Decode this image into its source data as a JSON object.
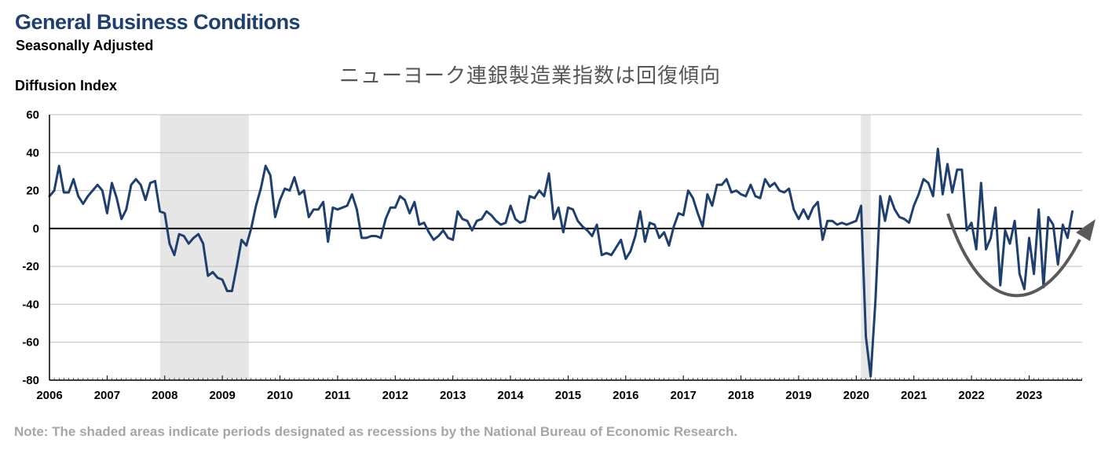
{
  "chart_data": {
    "type": "line",
    "title": "General Business Conditions",
    "subtitle": "Seasonally Adjusted",
    "ylabel": "Diffusion Index",
    "annotation": "ニューヨーク連銀製造業指数は回復傾向",
    "note": "Note: The shaded areas indicate periods designated as recessions by the National Bureau of Economic Research.",
    "ylim": [
      -80,
      60
    ],
    "yticks": [
      60,
      40,
      20,
      0,
      -20,
      -40,
      -60,
      -80
    ],
    "xlim": [
      2006.0,
      2023.92
    ],
    "xticks": [
      "2006",
      "2007",
      "2008",
      "2009",
      "2010",
      "2011",
      "2012",
      "2013",
      "2014",
      "2015",
      "2016",
      "2017",
      "2018",
      "2019",
      "2020",
      "2021",
      "2022",
      "2023"
    ],
    "grid": "horizontal",
    "recessions": [
      [
        2007.92,
        2009.46
      ],
      [
        2020.08,
        2020.25
      ]
    ],
    "series": [
      {
        "start": 2006.0,
        "step_months": 1,
        "color": "#1f3f6e",
        "values": [
          17,
          20,
          33,
          19,
          19,
          26,
          17,
          13,
          17,
          20,
          23,
          20,
          8,
          24,
          16,
          5,
          10,
          23,
          26,
          23,
          15,
          24,
          25,
          9,
          8,
          -8,
          -14,
          -3,
          -4,
          -8,
          -5,
          -3,
          -8,
          -25,
          -23,
          -26,
          -27,
          -33,
          -33,
          -20,
          -6,
          -9,
          0,
          12,
          21,
          33,
          28,
          6,
          15,
          21,
          20,
          27,
          18,
          20,
          6,
          10,
          10,
          14,
          -7,
          11,
          10,
          11,
          12,
          18,
          10,
          -5,
          -5,
          -4,
          -4,
          -5,
          5,
          11,
          11,
          17,
          15,
          8,
          14,
          2,
          3,
          -2,
          -6,
          -4,
          -1,
          -5,
          -6,
          9,
          5,
          4,
          -1,
          4,
          5,
          9,
          7,
          4,
          2,
          3,
          12,
          5,
          3,
          4,
          17,
          16,
          20,
          17,
          29,
          5,
          11,
          -2,
          11,
          10,
          4,
          1,
          -1,
          -4,
          2,
          -14,
          -13,
          -14,
          -10,
          -6,
          -16,
          -12,
          -4,
          9,
          -7,
          3,
          2,
          -5,
          -2,
          -9,
          1,
          8,
          7,
          20,
          16,
          8,
          1,
          18,
          12,
          23,
          23,
          26,
          19,
          20,
          18,
          17,
          23,
          17,
          16,
          26,
          22,
          24,
          20,
          19,
          21,
          10,
          5,
          10,
          5,
          11,
          14,
          -6,
          4,
          4,
          2,
          3,
          2,
          3,
          4,
          12,
          -57,
          -78,
          -38,
          17,
          4,
          17,
          10,
          6,
          5,
          3,
          12,
          18,
          26,
          24,
          17,
          42,
          18,
          34,
          19,
          31,
          31,
          -1,
          3,
          -11,
          24,
          -11,
          -5,
          11,
          -30,
          -1,
          -8,
          4,
          -24,
          -32,
          -5,
          -24,
          10,
          -31,
          6,
          2,
          -19,
          2,
          -5,
          9
        ]
      }
    ]
  }
}
